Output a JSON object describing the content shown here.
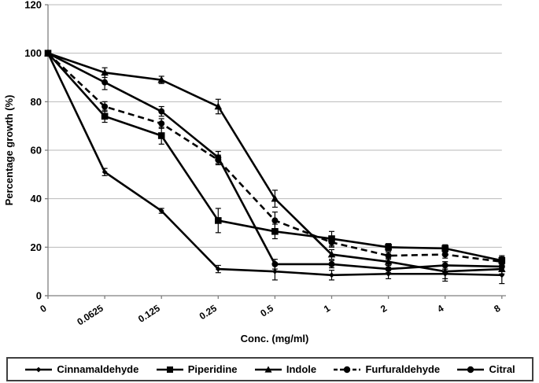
{
  "chart_data": {
    "type": "line",
    "title": "",
    "xlabel": "Conc. (mg/ml)",
    "ylabel": "Percentage growth (%)",
    "categories": [
      "0",
      "0.0625",
      "0.125",
      "0.25",
      "0.5",
      "1",
      "2",
      "4",
      "8"
    ],
    "yticks": [
      0,
      20,
      40,
      60,
      80,
      100,
      120
    ],
    "ylim": [
      0,
      120
    ],
    "grid": "horizontal-only",
    "legend_position": "bottom-boxed",
    "colors": {
      "series_color": "#000000",
      "gridline": "#b9b9b9",
      "axis": "#7f7f7f",
      "text": "#000000",
      "legend_border": "#3f3f3f",
      "background": "#ffffff"
    },
    "series": [
      {
        "name": "Cinnamaldehyde",
        "marker": "diamond",
        "line_style": "solid",
        "values": [
          100,
          51,
          35,
          11,
          10,
          8.5,
          9,
          9,
          8.5
        ],
        "errors": [
          0,
          1.5,
          1,
          1.5,
          3.5,
          2,
          2,
          2,
          3.5
        ]
      },
      {
        "name": "Piperidine",
        "marker": "square",
        "line_style": "solid",
        "values": [
          100,
          74,
          66,
          31,
          26.5,
          23.5,
          20,
          19.5,
          14.5
        ],
        "errors": [
          0,
          2.5,
          3.5,
          5,
          3,
          3,
          1.5,
          1.5,
          2
        ]
      },
      {
        "name": "Indole",
        "marker": "triangle",
        "line_style": "solid",
        "values": [
          100,
          92,
          89,
          78,
          40,
          17,
          14,
          10,
          11
        ],
        "errors": [
          0,
          2,
          1.5,
          3,
          3.5,
          2,
          1.5,
          4,
          2
        ]
      },
      {
        "name": "Furfuraldehyde",
        "marker": "circle",
        "line_style": "dashed",
        "values": [
          100,
          78,
          71,
          56,
          31,
          22,
          16.5,
          17,
          14
        ],
        "errors": [
          0,
          2,
          2,
          2,
          3.5,
          2,
          1.5,
          1.5,
          2
        ]
      },
      {
        "name": "Citral",
        "marker": "circle",
        "line_style": "solid",
        "values": [
          100,
          88,
          76,
          57,
          13,
          13,
          11,
          12.5,
          12
        ],
        "errors": [
          0,
          3,
          2,
          2.5,
          2,
          1.5,
          1.5,
          1.5,
          2
        ]
      }
    ]
  }
}
